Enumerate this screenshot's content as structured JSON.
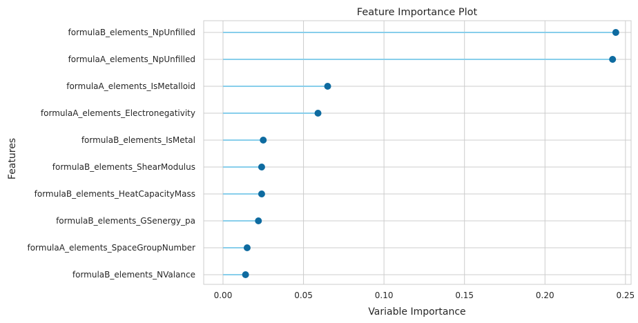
{
  "chart_data": {
    "type": "lollipop",
    "title": "Feature Importance Plot",
    "xlabel": "Variable Importance",
    "ylabel": "Features",
    "xlim": [
      -0.012,
      0.2535
    ],
    "xticks": [
      0.0,
      0.05,
      0.1,
      0.15,
      0.2,
      0.25
    ],
    "xtick_labels": [
      "0.00",
      "0.05",
      "0.10",
      "0.15",
      "0.20",
      "0.25"
    ],
    "grid": true,
    "categories": [
      "formulaB_elements_NpUnfilled",
      "formulaA_elements_NpUnfilled",
      "formulaA_elements_IsMetalloid",
      "formulaA_elements_Electronegativity",
      "formulaB_elements_IsMetal",
      "formulaB_elements_ShearModulus",
      "formulaB_elements_HeatCapacityMass",
      "formulaB_elements_GSenergy_pa",
      "formulaA_elements_SpaceGroupNumber",
      "formulaB_elements_NValance"
    ],
    "values": [
      0.244,
      0.242,
      0.065,
      0.059,
      0.025,
      0.024,
      0.024,
      0.022,
      0.015,
      0.014
    ],
    "colors": {
      "stem": "#87ceeb",
      "marker": "#0e6ba0",
      "grid": "#cccccc",
      "text": "#262626"
    }
  }
}
